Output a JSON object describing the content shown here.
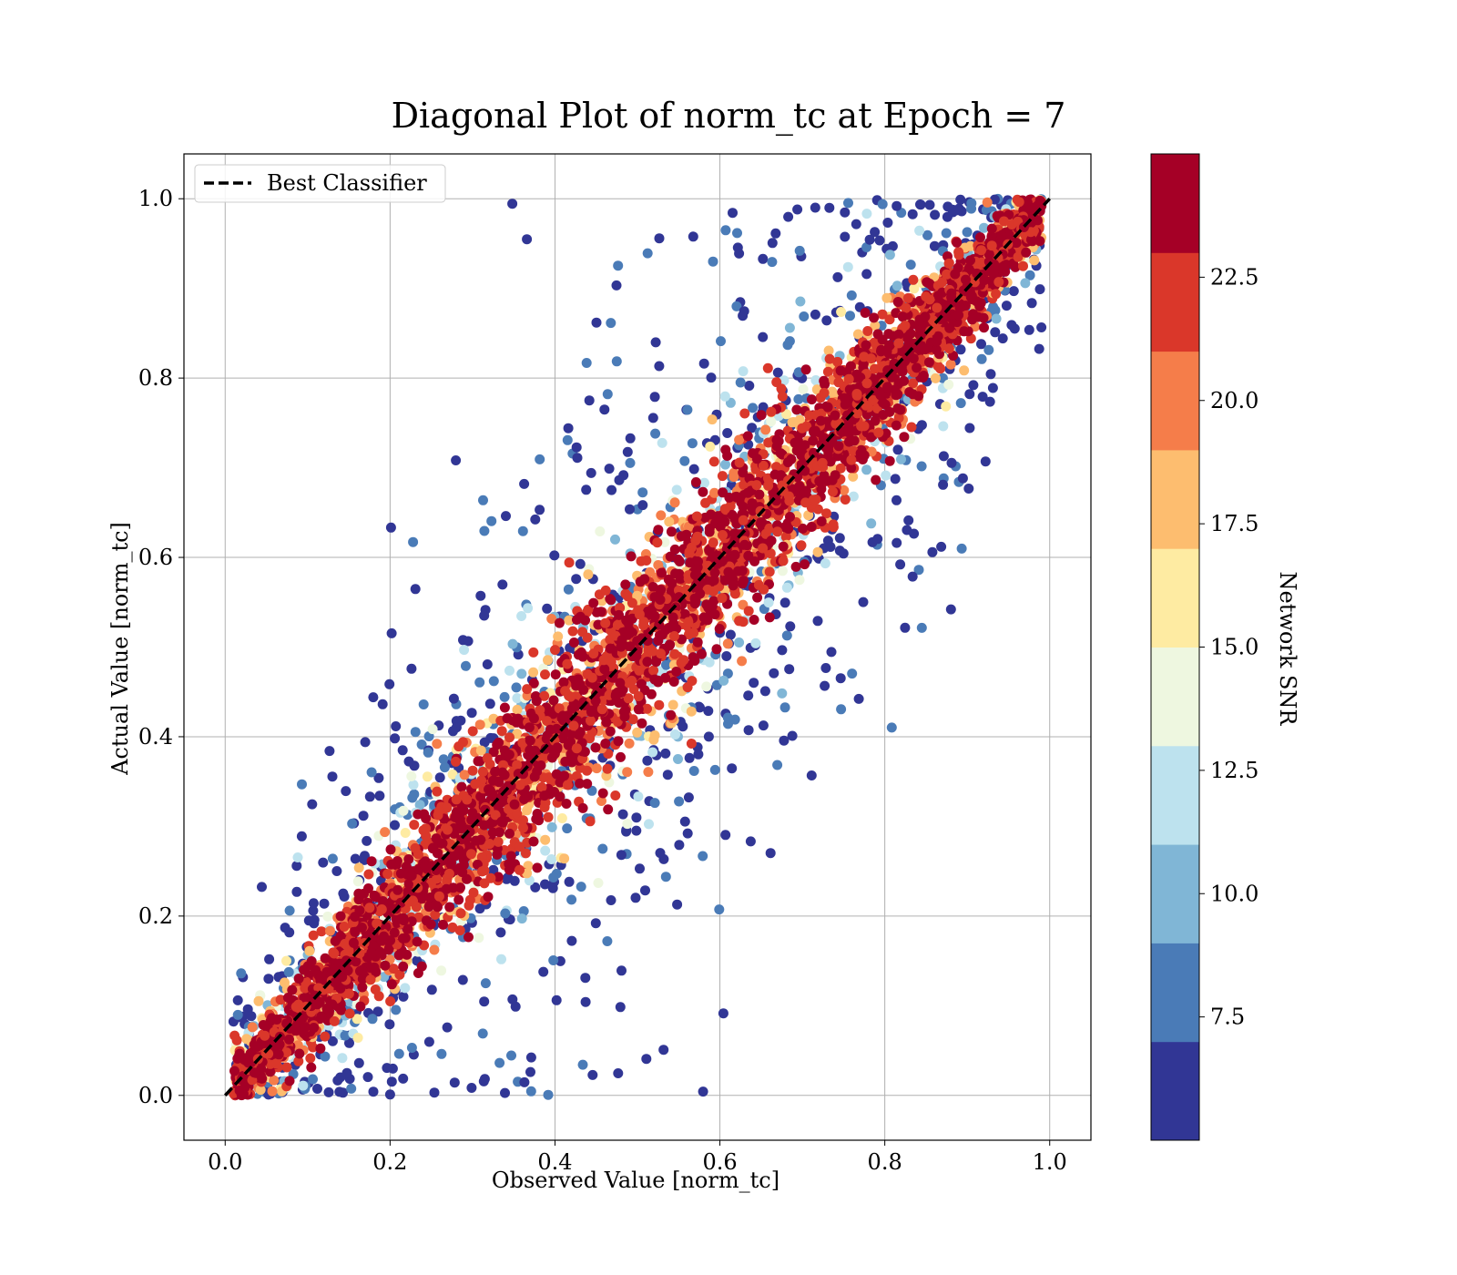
{
  "chart_data": {
    "type": "scatter",
    "title": "Diagonal Plot of norm_tc at Epoch = 7",
    "xlabel": "Observed Value [norm_tc]",
    "ylabel": "Actual Value [norm_tc]",
    "xlim": [
      -0.05,
      1.05
    ],
    "ylim": [
      -0.05,
      1.05
    ],
    "x_ticks": [
      "0.0",
      "0.2",
      "0.4",
      "0.6",
      "0.8",
      "1.0"
    ],
    "y_ticks": [
      "0.0",
      "0.2",
      "0.4",
      "0.6",
      "0.8",
      "1.0"
    ],
    "grid": true,
    "legend": {
      "placement": "top-left",
      "entries": [
        "Best Classifier"
      ]
    },
    "reference_line": {
      "name": "Best Classifier",
      "style": "dashed",
      "color": "#000000",
      "points": [
        [
          0,
          0
        ],
        [
          1,
          1
        ]
      ]
    },
    "colorbar": {
      "label": "Network SNR",
      "range": [
        5,
        25
      ],
      "ticks": [
        "7.5",
        "10.0",
        "12.5",
        "15.0",
        "17.5",
        "20.0",
        "22.5"
      ],
      "colormap": "RdYlBu_r (discrete)",
      "colors": [
        "#313695",
        "#4a7bb7",
        "#80b6d6",
        "#bde2ee",
        "#eef7e0",
        "#feeba2",
        "#fdbd6f",
        "#f57d4a",
        "#da372a",
        "#a50026"
      ]
    },
    "points_description_groups": [
      {
        "snr_level": "high (22.5-25)",
        "color": "#a50026",
        "spread": 0.045
      },
      {
        "snr_level": "mid-high (17.5-22.5)",
        "color": "#f57d4a",
        "spread": 0.06
      },
      {
        "snr_level": "mid (12.5-17.5)",
        "color": "#feeba2",
        "spread": 0.075
      },
      {
        "snr_level": "low (5-10)",
        "color": "#313695",
        "spread": 0.2
      }
    ]
  }
}
